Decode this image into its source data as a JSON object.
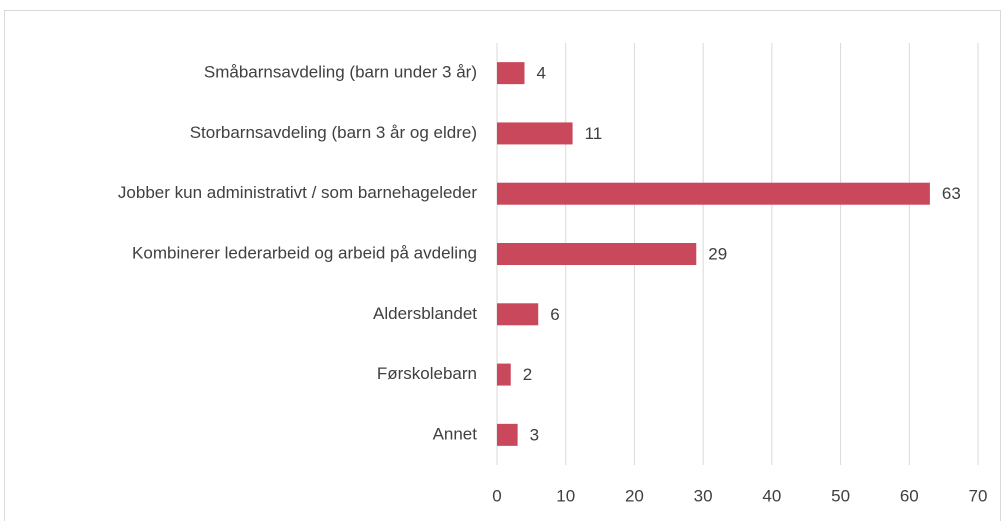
{
  "chart_data": {
    "type": "bar",
    "orientation": "horizontal",
    "categories": [
      "Småbarnsavdeling (barn under 3 år)",
      "Storbarnsavdeling (barn 3 år og eldre)",
      "Jobber kun administrativt / som barnehageleder",
      "Kombinerer lederarbeid og arbeid på avdeling",
      "Aldersblandet",
      "Førskolebarn",
      "Annet"
    ],
    "values": [
      4,
      11,
      63,
      29,
      6,
      2,
      3
    ],
    "color": "#c9485b",
    "xlim": [
      0,
      70
    ],
    "xticks": [
      0,
      10,
      20,
      30,
      40,
      50,
      60,
      70
    ],
    "grid": true
  }
}
